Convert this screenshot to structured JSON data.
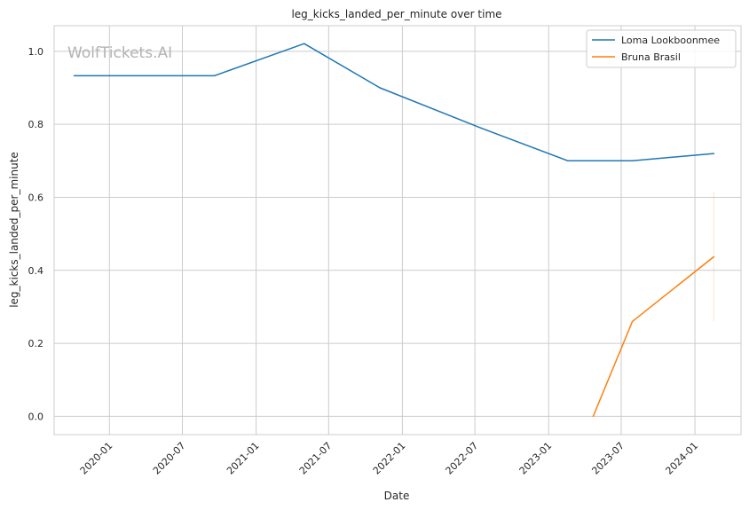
{
  "chart_data": {
    "type": "line",
    "title": "leg_kicks_landed_per_minute over time",
    "xlabel": "Date",
    "ylabel": "leg_kicks_landed_per_minute",
    "watermark": "WolfTickets.AI",
    "x_ticks": [
      "2020-01",
      "2020-07",
      "2021-01",
      "2021-07",
      "2022-01",
      "2022-07",
      "2023-01",
      "2023-07",
      "2024-01"
    ],
    "y_ticks": [
      "0.0",
      "0.2",
      "0.4",
      "0.6",
      "0.8",
      "1.0"
    ],
    "xlim": [
      "2019-08-16",
      "2024-04-25"
    ],
    "ylim": [
      -0.05,
      1.07
    ],
    "grid": true,
    "legend_position": "top-right",
    "series": [
      {
        "name": "Loma Lookboonmee",
        "color": "#1f77b4",
        "points": [
          {
            "x": "2019-10-05",
            "y": 0.933
          },
          {
            "x": "2020-09-19",
            "y": 0.933
          },
          {
            "x": "2021-05-01",
            "y": 1.021
          },
          {
            "x": "2021-11-06",
            "y": 0.9
          },
          {
            "x": "2022-07-16",
            "y": 0.79
          },
          {
            "x": "2023-02-18",
            "y": 0.7
          },
          {
            "x": "2023-07-29",
            "y": 0.7
          },
          {
            "x": "2024-02-17",
            "y": 0.72
          }
        ]
      },
      {
        "name": "Bruna Brasil",
        "color": "#ff7f0e",
        "points": [
          {
            "x": "2023-04-22",
            "y": 0.0
          },
          {
            "x": "2023-07-29",
            "y": 0.26
          },
          {
            "x": "2024-02-17",
            "y": 0.437
          }
        ],
        "error_band": {
          "x": "2024-02-17",
          "low": 0.26,
          "high": 0.615
        }
      }
    ]
  }
}
